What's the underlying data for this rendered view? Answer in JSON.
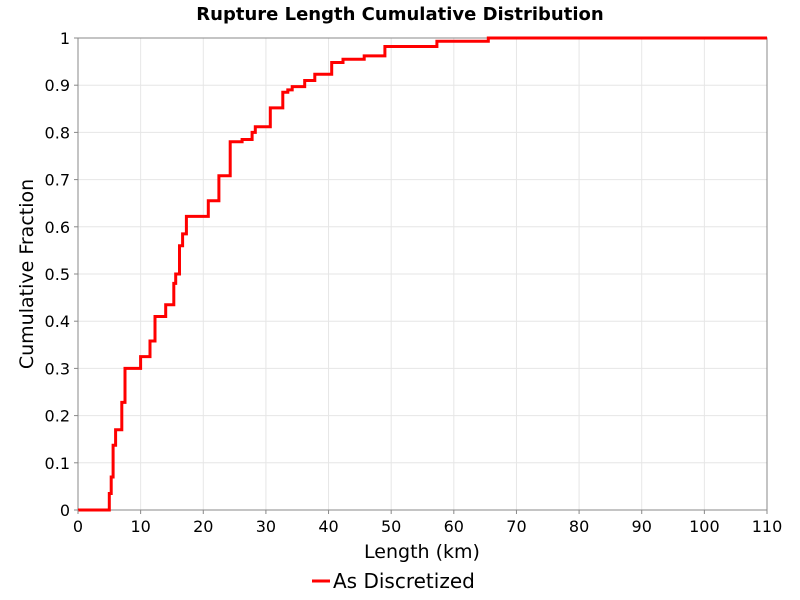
{
  "chart_data": {
    "type": "line",
    "title": "Rupture Length Cumulative Distribution",
    "xlabel": "Length (km)",
    "ylabel": "Cumulative Fraction",
    "xlim": [
      0,
      110
    ],
    "ylim": [
      0,
      1
    ],
    "x_ticks": [
      "0",
      "10",
      "20",
      "30",
      "40",
      "50",
      "60",
      "70",
      "80",
      "90",
      "100",
      "110"
    ],
    "y_ticks": [
      "0",
      "0.1",
      "0.2",
      "0.3",
      "0.4",
      "0.5",
      "0.6",
      "0.7",
      "0.8",
      "0.9",
      "1"
    ],
    "grid": true,
    "legend_position": "bottom",
    "series": [
      {
        "name": "As Discretized",
        "color": "#ff0000",
        "step": true,
        "x": [
          0,
          5.0,
          5.3,
          5.6,
          6.0,
          7.0,
          7.5,
          8.0,
          10.0,
          11.5,
          12.3,
          14.0,
          15.3,
          15.6,
          16.2,
          16.7,
          17.3,
          18.3,
          20.8,
          22.5,
          24.3,
          26.2,
          27.8,
          28.3,
          30.7,
          32.7,
          33.5,
          34.2,
          36.2,
          37.8,
          40.5,
          42.3,
          45.7,
          49.0,
          57.3,
          65.5,
          110
        ],
        "y": [
          0,
          0.035,
          0.07,
          0.137,
          0.17,
          0.228,
          0.3,
          0.3,
          0.325,
          0.358,
          0.41,
          0.435,
          0.48,
          0.5,
          0.56,
          0.585,
          0.622,
          0.622,
          0.655,
          0.708,
          0.78,
          0.785,
          0.8,
          0.812,
          0.852,
          0.885,
          0.89,
          0.897,
          0.91,
          0.923,
          0.948,
          0.955,
          0.962,
          0.982,
          0.993,
          1.0,
          1.0
        ]
      }
    ]
  }
}
